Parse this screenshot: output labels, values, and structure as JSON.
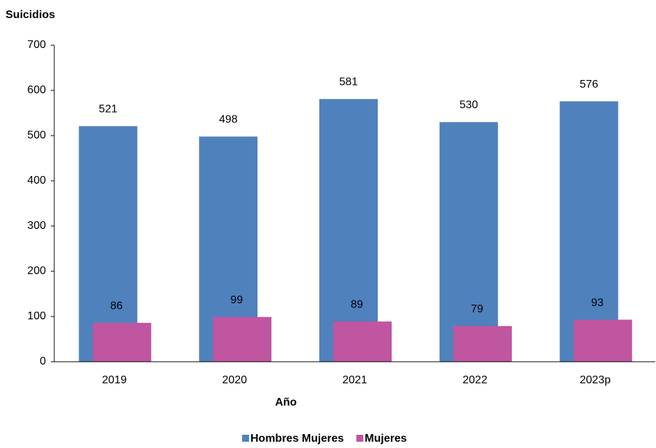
{
  "chart_data": {
    "type": "bar",
    "y_label": "Suicidios",
    "x_label": "Año",
    "categories": [
      "2019",
      "2020",
      "2021",
      "2022",
      "2023p"
    ],
    "series": [
      {
        "name": "Hombres Mujeres",
        "color": "#4f81bd",
        "values": [
          521,
          498,
          581,
          530,
          576
        ]
      },
      {
        "name": "Mujeres",
        "color": "#c0569f",
        "values": [
          86,
          99,
          89,
          79,
          93
        ]
      }
    ],
    "ylim": [
      0,
      700
    ],
    "yticks": [
      0,
      100,
      200,
      300,
      400,
      500,
      600,
      700
    ]
  }
}
